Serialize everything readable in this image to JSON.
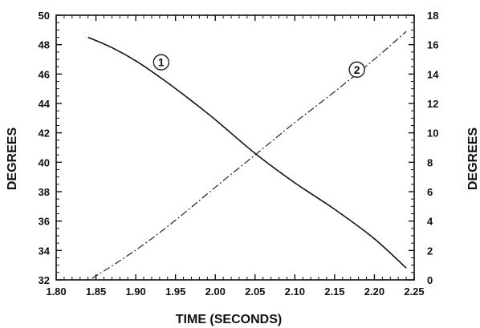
{
  "chart_data": {
    "type": "line",
    "title": "",
    "xlabel": "TIME (SECONDS)",
    "ylabel_left": "DEGREES",
    "ylabel_right": "DEGREES",
    "xlim": [
      1.8,
      2.25
    ],
    "ylim_left": [
      32,
      50
    ],
    "ylim_right": [
      0,
      18
    ],
    "x_ticks": [
      "1.80",
      "1.85",
      "1.90",
      "1.95",
      "2.00",
      "2.05",
      "2.10",
      "2.15",
      "2.20",
      "2.25"
    ],
    "y_left_ticks": [
      "32",
      "34",
      "36",
      "38",
      "40",
      "42",
      "44",
      "46",
      "48",
      "50"
    ],
    "y_right_ticks": [
      "0",
      "2",
      "4",
      "6",
      "8",
      "10",
      "12",
      "14",
      "16",
      "18"
    ],
    "grid": false,
    "series": [
      {
        "name": "1",
        "axis": "left",
        "style": "solid",
        "x": [
          1.84,
          1.87,
          1.9,
          1.93,
          1.96,
          2.0,
          2.05,
          2.1,
          2.15,
          2.2,
          2.24
        ],
        "y": [
          48.5,
          47.8,
          46.9,
          45.8,
          44.6,
          42.9,
          40.6,
          38.6,
          36.8,
          34.8,
          32.8
        ]
      },
      {
        "name": "2",
        "axis": "right",
        "style": "dash-dot",
        "x": [
          1.845,
          1.88,
          1.92,
          1.96,
          2.0,
          2.05,
          2.1,
          2.15,
          2.2,
          2.24
        ],
        "y": [
          0.1,
          1.3,
          2.8,
          4.5,
          6.3,
          8.5,
          10.7,
          12.8,
          15.0,
          16.9
        ]
      }
    ],
    "annotations": [
      {
        "text": "1",
        "series": "1",
        "x": 1.932,
        "y_left": 46.8
      },
      {
        "text": "2",
        "series": "2",
        "x": 2.178,
        "y_right": 14.3
      }
    ]
  }
}
